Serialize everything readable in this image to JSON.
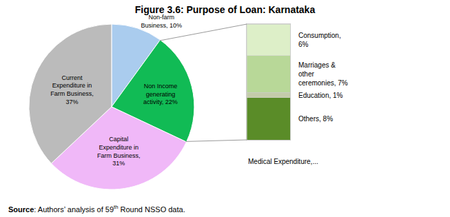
{
  "chart_data": [
    {
      "type": "pie",
      "title": "Figure 3.6: Purpose of Loan: Karnataka",
      "values": [
        10,
        22,
        31,
        37
      ],
      "value_labels": [
        "Non-farm\nBusiness, 10%",
        "Non Income\ngenerating\nactivity, 22%",
        "Capital\nExpenditure in\nFarm Business,\n31%",
        "Current\nExpenditure in\nFarm Business,\n37%"
      ],
      "colors": [
        "#aaccee",
        "#11bb55",
        "#f0b8f8",
        "#bbbbbb"
      ],
      "data_labels": true,
      "annotations": [
        "Source",
        ": Authors’ analysis of 59",
        "th",
        " Round NSSO data."
      ]
    },
    {
      "type": "bar",
      "stacked": true,
      "values": [
        8,
        1,
        7,
        6
      ],
      "value_labels": [
        "Others, 8%",
        "Education, 1%",
        "Marriages &\nother\nceremonies, 7%",
        "Consumption,\n6%"
      ],
      "colors": [
        "#5a8c28",
        "#c4ccaa",
        "#b8d898",
        "#ddefc8"
      ],
      "data_labels": true,
      "ylim": [
        0,
        22
      ],
      "yticks": [],
      "tick_labels": false,
      "annotations": [
        "Medical Expenditure,..."
      ]
    }
  ]
}
